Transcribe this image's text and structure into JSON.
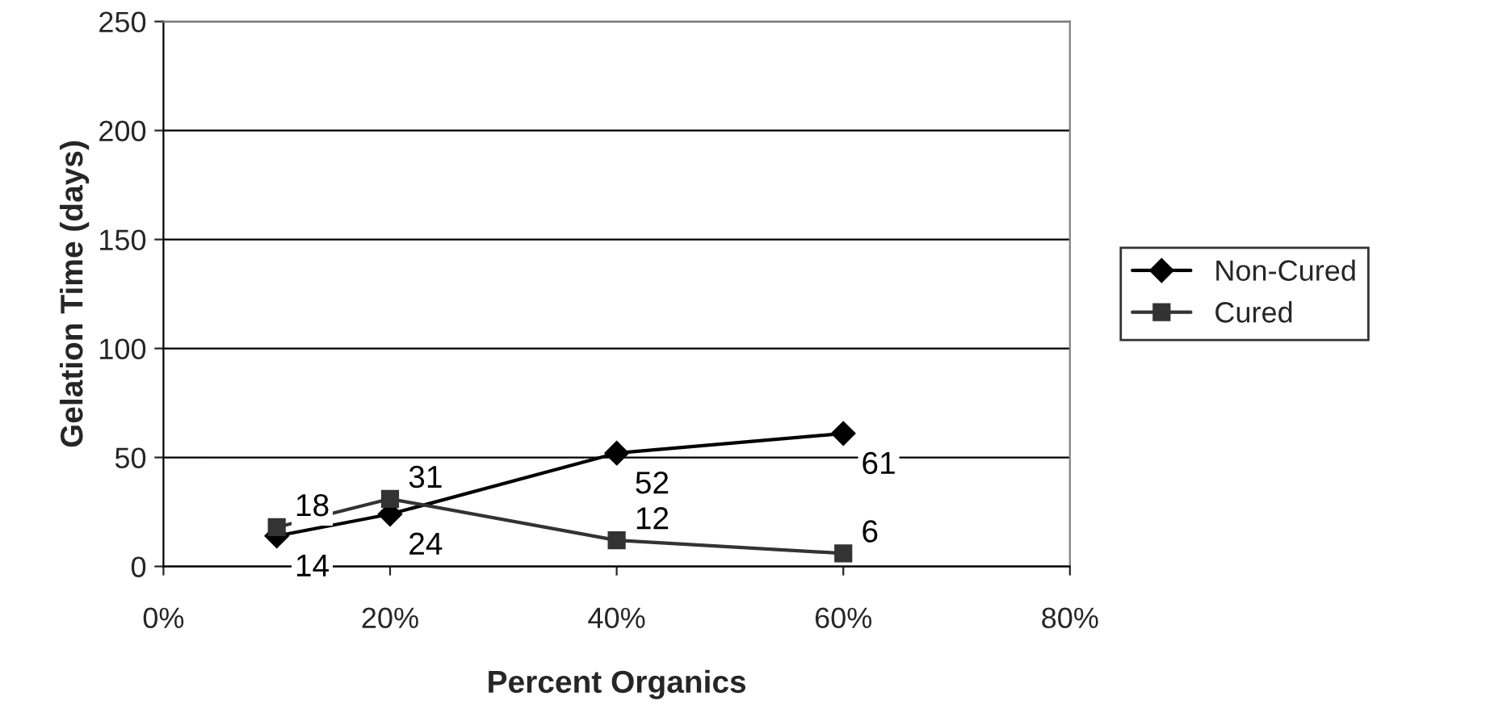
{
  "chart_data": {
    "type": "line",
    "xlabel": "Percent Organics",
    "ylabel": "Gelation Time (days)",
    "x": [
      10,
      20,
      40,
      60
    ],
    "series": [
      {
        "name": "Non-Cured",
        "color": "#000000",
        "values": [
          14,
          24,
          52,
          61
        ],
        "marker": "diamond"
      },
      {
        "name": "Cured",
        "color": "#333333",
        "values": [
          18,
          31,
          12,
          6
        ],
        "marker": "square"
      }
    ],
    "xlim": [
      0,
      80
    ],
    "xticks": [
      {
        "value": 0,
        "label": "0%"
      },
      {
        "value": 20,
        "label": "20%"
      },
      {
        "value": 40,
        "label": "40%"
      },
      {
        "value": 60,
        "label": "60%"
      },
      {
        "value": 80,
        "label": "80%"
      }
    ],
    "ylim": [
      0,
      250
    ],
    "yticks": [
      0,
      50,
      100,
      150,
      200,
      250
    ],
    "grid": "y",
    "legend": "right",
    "data_labels": true
  }
}
